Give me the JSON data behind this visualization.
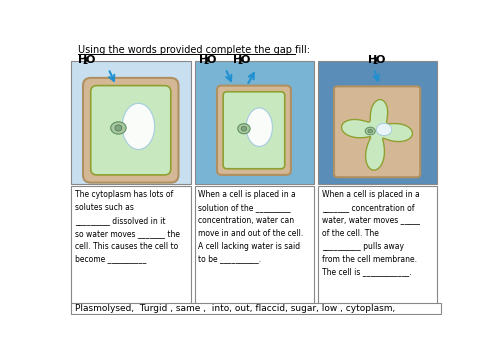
{
  "title": "Using the words provided complete the gap fill:",
  "bg_color": "#ffffff",
  "panel_bg_colors": [
    "#c8dff0",
    "#7ab4d4",
    "#5a8db8"
  ],
  "cell_wall_color": "#d4b896",
  "cell_interior_color": "#c8e8c0",
  "arrow_color": "#2090d0",
  "text1": "The cytoplasm has lots of\nsolutes such as\n_________ dissolved in it\nso water moves _______ the\ncell. This causes the cell to\nbecome __________",
  "text2": "When a cell is placed in a\nsolution of the _________\nconcentration, water can\nmove in and out of the cell.\nA cell lacking water is said\nto be __________.",
  "text3": "When a cell is placed in a\n_______ concentration of\nwater, water moves _____\nof the cell. The\n__________ pulls away\nfrom the cell membrane.\nThe cell is ____________.",
  "word_bank": "Plasmolysed,  Turgid , same ,  into, out, flaccid, sugar, low , cytoplasm,"
}
